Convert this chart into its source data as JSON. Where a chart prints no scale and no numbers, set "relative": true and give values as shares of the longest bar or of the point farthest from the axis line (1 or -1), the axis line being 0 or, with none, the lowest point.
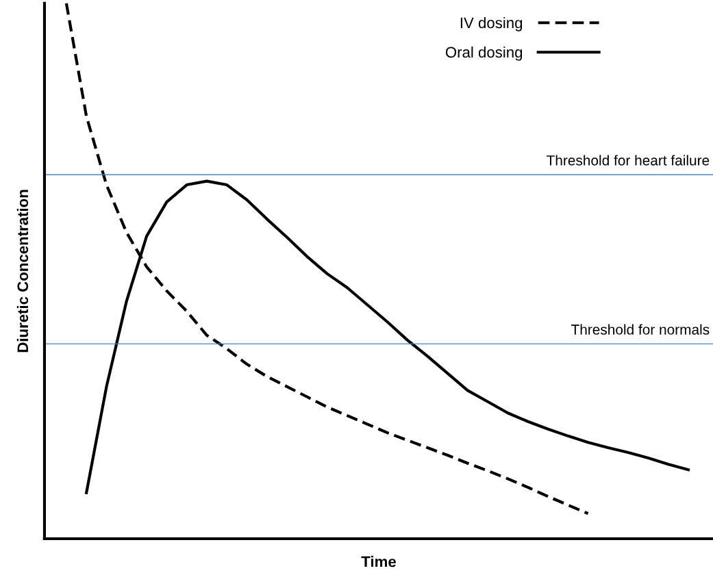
{
  "chart_data": {
    "type": "line",
    "relative": true,
    "xlabel": "Time",
    "ylabel": "Diuretic Concentration",
    "tick_labels": false,
    "legend": "top right",
    "categories": [
      null,
      null,
      null,
      null,
      null,
      null,
      null,
      null,
      null,
      null,
      null,
      null,
      null,
      null,
      null,
      null,
      null,
      null,
      null,
      null,
      null,
      null,
      null,
      null,
      null,
      null,
      null,
      null,
      null,
      null,
      null,
      null
    ],
    "series": [
      {
        "name": "IV dosing",
        "color": "#000000",
        "line_style": "dashed",
        "values": [
          1.0,
          0.789,
          0.661,
          0.572,
          0.508,
          0.463,
          0.425,
          0.38,
          0.355,
          0.326,
          0.303,
          0.284,
          0.265,
          0.246,
          0.23,
          0.214,
          0.198,
          0.184,
          0.17,
          0.156,
          0.141,
          0.127,
          0.112,
          0.096,
          0.079,
          0.063,
          0.047,
          null,
          null,
          null,
          null,
          null
        ]
      },
      {
        "name": "Oral dosing",
        "color": "#000000",
        "line_style": "solid",
        "values": [
          null,
          0.086,
          0.284,
          0.444,
          0.565,
          0.629,
          0.661,
          0.668,
          0.661,
          0.633,
          0.597,
          0.563,
          0.527,
          0.495,
          0.469,
          0.437,
          0.405,
          0.371,
          0.341,
          0.309,
          0.277,
          0.256,
          0.235,
          0.219,
          0.205,
          0.192,
          0.18,
          0.17,
          0.161,
          0.151,
          0.139,
          0.129
        ]
      }
    ],
    "ref_lines": [
      {
        "axis": "y",
        "value": 0.68,
        "label": "Threshold for heart failure",
        "color": "#4f81bd"
      },
      {
        "axis": "y",
        "value": 0.364,
        "label": "Threshold for normals",
        "color": "#4f81bd"
      }
    ]
  }
}
